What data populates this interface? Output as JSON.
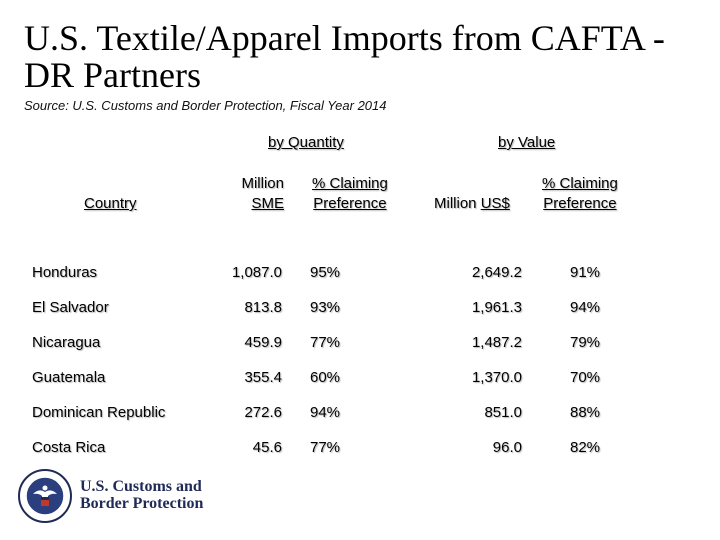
{
  "title": "U.S. Textile/Apparel Imports from CAFTA -DR Partners",
  "source": "Source: U.S. Customs and Border Protection, Fiscal Year 2014",
  "groups": {
    "quantity": "by Quantity",
    "value": "by Value"
  },
  "headers": {
    "country": "Country",
    "qty_line1": "Million",
    "qty_line2": "SME",
    "qpref_line1": "% Claiming",
    "qpref_line2": "Preference",
    "val_line1": "Million",
    "val_line2": "US$",
    "vpref_line1": "% Claiming",
    "vpref_line2": "Preference"
  },
  "rows": [
    {
      "country": "Honduras",
      "qty": "1,087.0",
      "qpref": "95%",
      "val": "2,649.2",
      "vpref": "91%"
    },
    {
      "country": "El Salvador",
      "qty": "813.8",
      "qpref": "93%",
      "val": "1,961.3",
      "vpref": "94%"
    },
    {
      "country": "Nicaragua",
      "qty": "459.9",
      "qpref": "77%",
      "val": "1,487.2",
      "vpref": "79%"
    },
    {
      "country": "Guatemala",
      "qty": "355.4",
      "qpref": "60%",
      "val": "1,370.0",
      "vpref": "70%"
    },
    {
      "country": "Dominican Republic",
      "qty": "272.6",
      "qpref": "94%",
      "val": "851.0",
      "vpref": "88%"
    },
    {
      "country": "Costa Rica",
      "qty": "45.6",
      "qpref": "77%",
      "val": "96.0",
      "vpref": "82%"
    }
  ],
  "logo": {
    "line1": "U.S. Customs and",
    "line2": "Border Protection",
    "seal_icon": "dhs-seal-icon",
    "text_color": "#1f2a57"
  }
}
